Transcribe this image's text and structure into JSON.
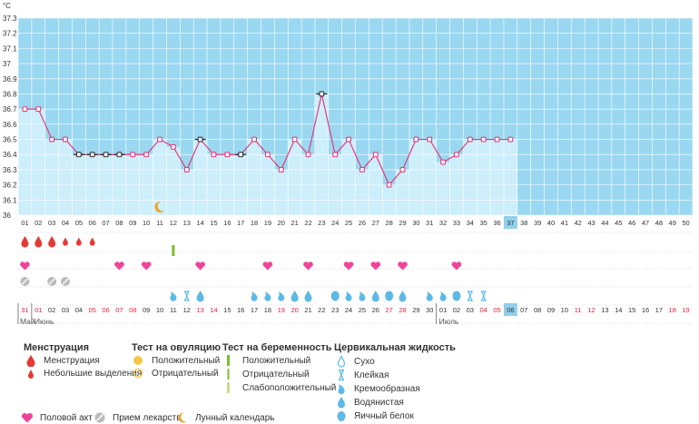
{
  "chart_data": {
    "type": "line",
    "unit": "°C",
    "ylim": [
      36,
      37.3
    ],
    "yticks": [
      "36",
      "36.1",
      "36.2",
      "36.3",
      "36.4",
      "36.5",
      "36.6",
      "36.7",
      "36.8",
      "36.9",
      "37",
      "37.1",
      "37.2",
      "37.3"
    ],
    "cycle_days": [
      "01",
      "02",
      "03",
      "04",
      "05",
      "06",
      "07",
      "08",
      "09",
      "10",
      "11",
      "12",
      "13",
      "14",
      "15",
      "16",
      "17",
      "18",
      "19",
      "20",
      "21",
      "22",
      "23",
      "24",
      "25",
      "26",
      "27",
      "28",
      "29",
      "30",
      "31",
      "32",
      "33",
      "34",
      "35",
      "36",
      "37",
      "38",
      "39",
      "40",
      "41",
      "42",
      "43",
      "44",
      "45",
      "46",
      "47",
      "48",
      "49",
      "50"
    ],
    "today_index": 36,
    "temperatures": [
      36.7,
      36.7,
      36.5,
      36.5,
      36.4,
      36.4,
      36.4,
      36.4,
      36.4,
      36.4,
      36.5,
      36.45,
      36.3,
      36.5,
      36.4,
      36.4,
      36.4,
      36.5,
      36.4,
      36.3,
      36.5,
      36.4,
      36.8,
      36.4,
      36.5,
      36.3,
      36.4,
      36.2,
      36.3,
      36.5,
      36.5,
      36.35,
      36.4,
      36.5,
      36.5,
      36.5,
      36.5
    ],
    "hollow_points": [
      4,
      5,
      6,
      7,
      13,
      16,
      22
    ],
    "dates": [
      "31",
      "01",
      "02",
      "03",
      "04",
      "05",
      "06",
      "07",
      "08",
      "09",
      "10",
      "11",
      "12",
      "13",
      "14",
      "15",
      "16",
      "17",
      "18",
      "19",
      "20",
      "21",
      "22",
      "23",
      "24",
      "25",
      "26",
      "27",
      "28",
      "29",
      "30",
      "01",
      "02",
      "03",
      "04",
      "05",
      "06",
      "07",
      "08",
      "09",
      "10",
      "11",
      "12",
      "13",
      "14",
      "15",
      "16",
      "17",
      "18",
      "19"
    ],
    "red_date_indices": [
      0,
      1,
      5,
      6,
      7,
      8,
      13,
      14,
      19,
      20,
      27,
      28,
      34,
      35,
      41,
      42,
      48,
      49
    ],
    "months": [
      {
        "label": "Май",
        "index": 0
      },
      {
        "label": "Июнь",
        "index": 1
      },
      {
        "label": "Июль",
        "index": 31
      }
    ],
    "menstruation": [
      {
        "day": 0,
        "kind": "heavy"
      },
      {
        "day": 1,
        "kind": "heavy"
      },
      {
        "day": 2,
        "kind": "heavy"
      },
      {
        "day": 3,
        "kind": "light"
      },
      {
        "day": 4,
        "kind": "light"
      },
      {
        "day": 5,
        "kind": "light"
      }
    ],
    "pregnancy_test": [
      {
        "day": 11,
        "kind": "positive"
      }
    ],
    "intercourse_days": [
      0,
      7,
      9,
      13,
      18,
      21,
      24,
      26,
      28,
      32
    ],
    "medication_days": [
      0,
      2,
      3
    ],
    "cervical_fluid": [
      {
        "day": 11,
        "kind": "creamy"
      },
      {
        "day": 12,
        "kind": "sticky"
      },
      {
        "day": 13,
        "kind": "watery"
      },
      {
        "day": 17,
        "kind": "creamy"
      },
      {
        "day": 18,
        "kind": "creamy"
      },
      {
        "day": 19,
        "kind": "creamy"
      },
      {
        "day": 20,
        "kind": "watery"
      },
      {
        "day": 21,
        "kind": "watery"
      },
      {
        "day": 23,
        "kind": "eggwhite"
      },
      {
        "day": 24,
        "kind": "creamy"
      },
      {
        "day": 25,
        "kind": "creamy"
      },
      {
        "day": 26,
        "kind": "watery"
      },
      {
        "day": 27,
        "kind": "eggwhite"
      },
      {
        "day": 28,
        "kind": "watery"
      },
      {
        "day": 30,
        "kind": "creamy"
      },
      {
        "day": 31,
        "kind": "creamy"
      },
      {
        "day": 32,
        "kind": "eggwhite"
      },
      {
        "day": 33,
        "kind": "sticky"
      },
      {
        "day": 34,
        "kind": "sticky"
      }
    ],
    "moon_day": 10
  },
  "colors": {
    "plot_bg": "#9ad8f1",
    "column_bg": "#cdeefb",
    "line": "#e23b7c",
    "point_border": "#e23b7c",
    "hollow_point_border": "#333333",
    "today_bg": "#8fd0ec",
    "heart": "#f0449a",
    "menstruation": "#e53935",
    "medication": "#bbbbbb",
    "ovulation_positive": "#f6c842",
    "pregnancy_positive": "#7cbf2c",
    "pregnancy_weak": "#c5e08a",
    "moon": "#f0a020",
    "fluid": "#5eb9e6",
    "weekend_red": "#e2263d",
    "grid_dashed": "#bbbbbb"
  },
  "legend": {
    "menstruation": {
      "title": "Менструация",
      "items": [
        "Менструация",
        "Небольшие выделения"
      ]
    },
    "ovulation_test": {
      "title": "Тест на овуляцию",
      "items": [
        "Положительный",
        "Отрицательный"
      ]
    },
    "pregnancy_test": {
      "title": "Тест на беременность",
      "items": [
        "Положительный",
        "Отрицательный",
        "Слабоположительный"
      ]
    },
    "cervical_fluid": {
      "title": "Цервикальная жидкость",
      "items": [
        "Сухо",
        "Клейкая",
        "Кремообразная",
        "Водянистая",
        "Яичный белок"
      ]
    },
    "bottom": [
      "Половой акт",
      "Прием лекарств",
      "Лунный календарь"
    ]
  }
}
